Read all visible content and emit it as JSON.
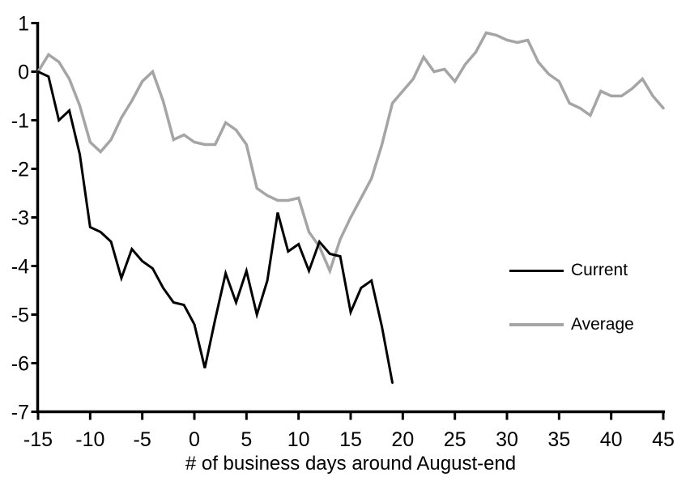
{
  "chart_data": {
    "type": "line",
    "title": "",
    "xlabel": "# of business days around August-end",
    "ylabel": "",
    "xlim": [
      -15,
      45
    ],
    "ylim": [
      -7,
      1
    ],
    "xticks": [
      -15,
      -10,
      -5,
      0,
      5,
      10,
      15,
      20,
      25,
      30,
      35,
      40,
      45
    ],
    "yticks": [
      1,
      0,
      -1,
      -2,
      -3,
      -4,
      -5,
      -6,
      -7
    ],
    "grid": false,
    "legend_position": "right-middle",
    "background_color": "#ffffff",
    "axis_color": "#000000",
    "series": [
      {
        "name": "Current",
        "color": "#000000",
        "line_width": 3,
        "x": [
          -15,
          -14,
          -13,
          -12,
          -11,
          -10,
          -9,
          -8,
          -7,
          -6,
          -5,
          -4,
          -3,
          -2,
          -1,
          0,
          1,
          2,
          3,
          4,
          5,
          6,
          7,
          8,
          9,
          10,
          11,
          12,
          13,
          14,
          15,
          16,
          17,
          18,
          19
        ],
        "y": [
          0,
          -0.1,
          -1.0,
          -0.8,
          -1.7,
          -3.2,
          -3.3,
          -3.5,
          -4.25,
          -3.65,
          -3.9,
          -4.05,
          -4.45,
          -4.75,
          -4.8,
          -5.2,
          -6.1,
          -5.1,
          -4.15,
          -4.75,
          -4.1,
          -5.0,
          -4.3,
          -2.9,
          -3.7,
          -3.55,
          -4.1,
          -3.5,
          -3.75,
          -3.8,
          -4.95,
          -4.45,
          -4.3,
          -5.25,
          -6.4
        ]
      },
      {
        "name": "Average",
        "color": "#a5a5a5",
        "line_width": 3.5,
        "x": [
          -15,
          -14,
          -13,
          -12,
          -11,
          -10,
          -9,
          -8,
          -7,
          -6,
          -5,
          -4,
          -3,
          -2,
          -1,
          0,
          1,
          2,
          3,
          4,
          5,
          6,
          7,
          8,
          9,
          10,
          11,
          12,
          13,
          14,
          15,
          16,
          17,
          18,
          19,
          20,
          21,
          22,
          23,
          24,
          25,
          26,
          27,
          28,
          29,
          30,
          31,
          32,
          33,
          34,
          35,
          36,
          37,
          38,
          39,
          40,
          41,
          42,
          43,
          44,
          45
        ],
        "y": [
          0,
          0.35,
          0.2,
          -0.15,
          -0.7,
          -1.45,
          -1.65,
          -1.4,
          -0.95,
          -0.6,
          -0.2,
          0,
          -0.6,
          -1.4,
          -1.3,
          -1.45,
          -1.5,
          -1.5,
          -1.05,
          -1.2,
          -1.5,
          -2.4,
          -2.55,
          -2.65,
          -2.65,
          -2.6,
          -3.3,
          -3.6,
          -4.1,
          -3.45,
          -3.0,
          -2.6,
          -2.2,
          -1.5,
          -0.65,
          -0.4,
          -0.15,
          0.3,
          0,
          0.05,
          -0.2,
          0.15,
          0.4,
          0.8,
          0.75,
          0.65,
          0.6,
          0.65,
          0.2,
          -0.05,
          -0.2,
          -0.65,
          -0.75,
          -0.9,
          -0.4,
          -0.5,
          -0.5,
          -0.35,
          -0.15,
          -0.5,
          -0.75
        ]
      }
    ]
  }
}
